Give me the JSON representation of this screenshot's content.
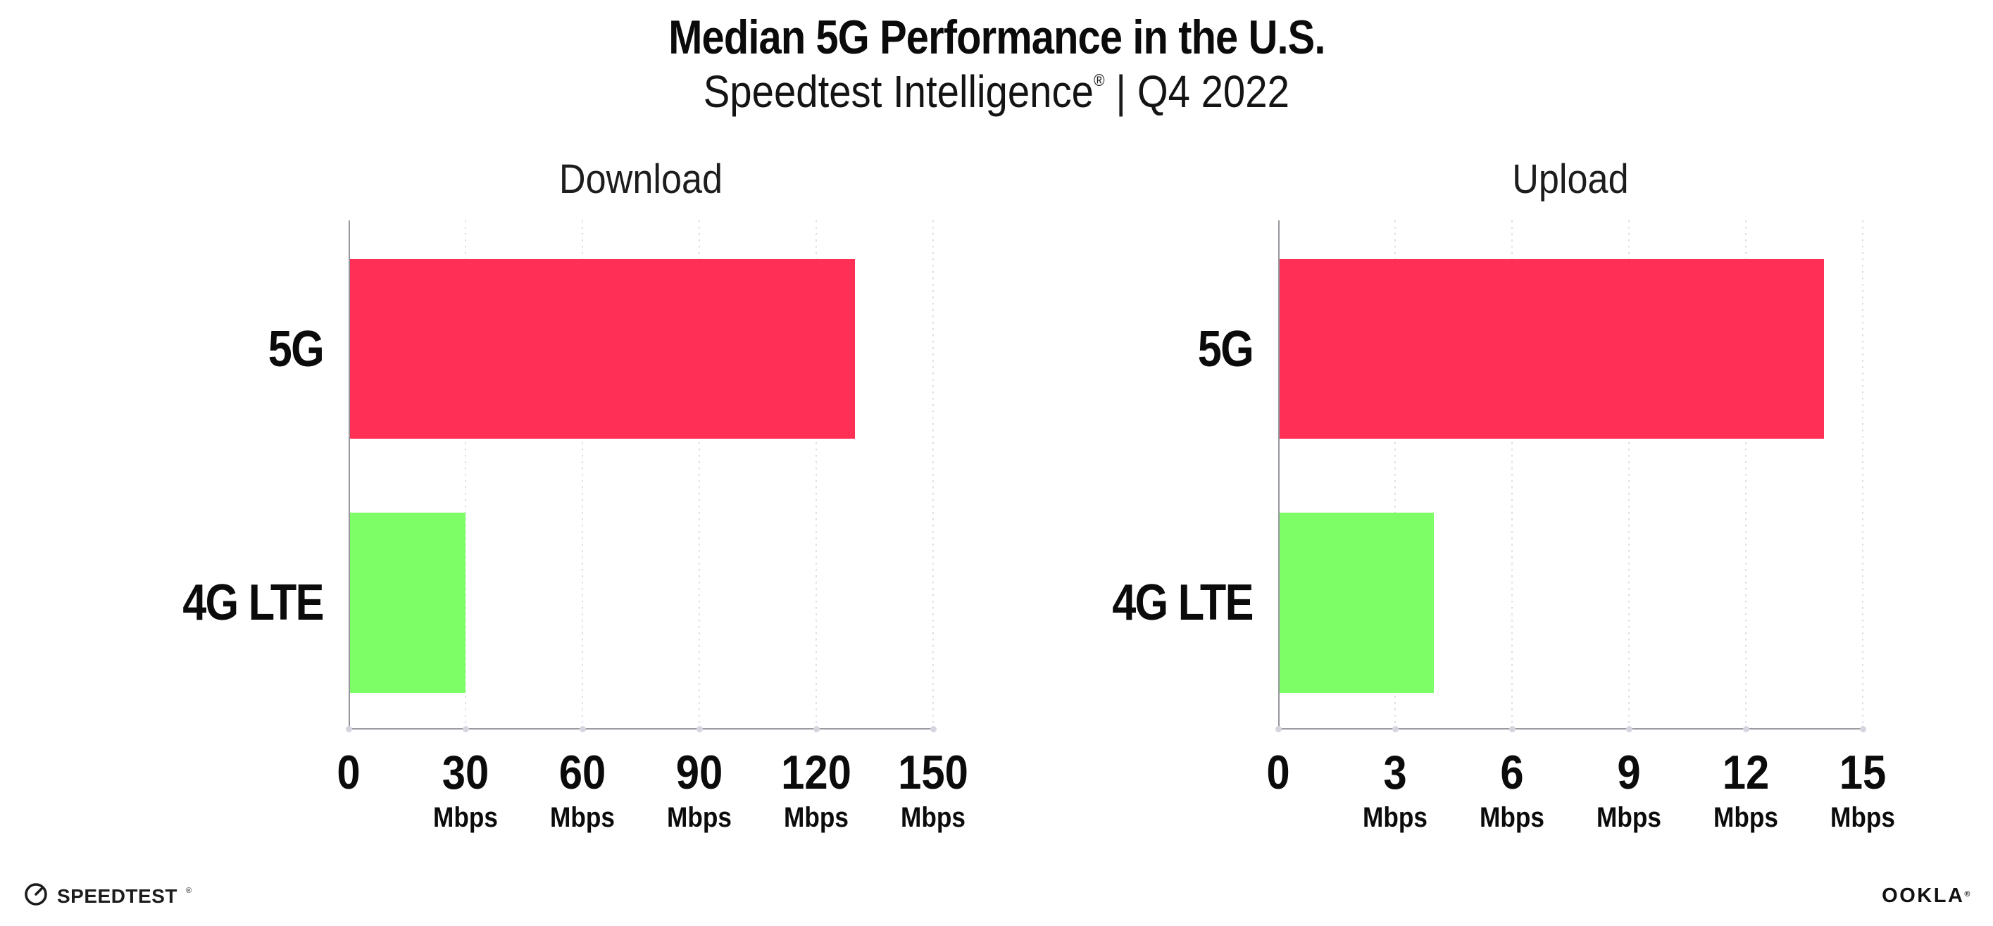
{
  "header": {
    "title": "Median 5G Performance in the U.S.",
    "subtitle": {
      "brand": "Speedtest Intelligence",
      "registered_mark": "®",
      "separator": "|",
      "period": "Q4 2022"
    }
  },
  "chart_data": [
    {
      "type": "bar",
      "orientation": "horizontal",
      "title": "Download",
      "categories": [
        "5G",
        "4G LTE"
      ],
      "values": [
        130,
        30
      ],
      "unit": "Mbps",
      "xlim": [
        0,
        150
      ],
      "xticks": [
        0,
        30,
        60,
        90,
        120,
        150
      ],
      "xtick_unit_label": "Mbps",
      "bar_colors": [
        "#FF2F55",
        "#7DFD66"
      ],
      "grid": "dotted-vertical",
      "legend": "none"
    },
    {
      "type": "bar",
      "orientation": "horizontal",
      "title": "Upload",
      "categories": [
        "5G",
        "4G LTE"
      ],
      "values": [
        14,
        4
      ],
      "unit": "Mbps",
      "xlim": [
        0,
        15
      ],
      "xticks": [
        0,
        3,
        6,
        9,
        12,
        15
      ],
      "xtick_unit_label": "Mbps",
      "bar_colors": [
        "#FF2F55",
        "#7DFD66"
      ],
      "grid": "dotted-vertical",
      "legend": "none"
    }
  ],
  "footer": {
    "speedtest": {
      "label": "SPEEDTEST",
      "mark": "®",
      "icon": "speedtest-gauge-icon"
    },
    "ookla": {
      "label": "OOKLA",
      "mark": "®"
    }
  }
}
